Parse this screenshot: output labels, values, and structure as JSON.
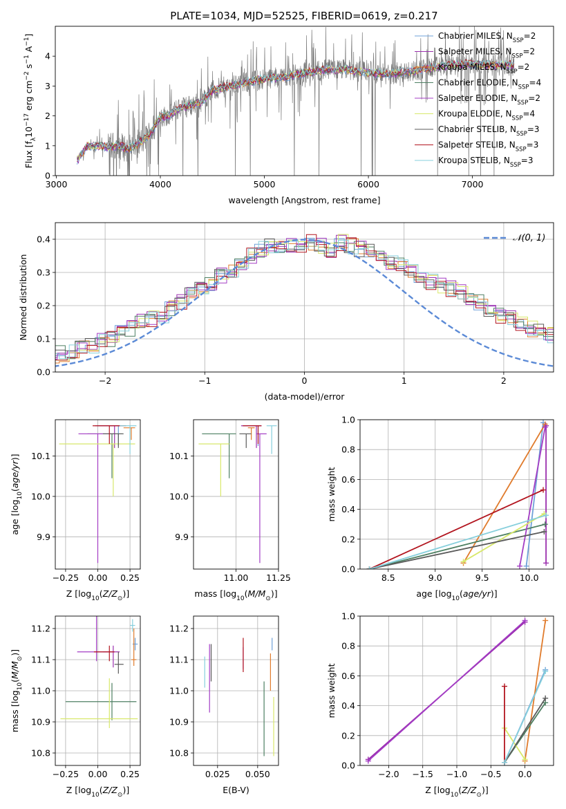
{
  "figure": {
    "title": "PLATE=1034, MJD=52525, FIBERID=0619, z=0.217"
  },
  "colors": {
    "models": [
      "#6ea0d8",
      "#9b2fae",
      "#e07b2c",
      "#4d7f62",
      "#a33cc4",
      "#d8e86a",
      "#5a5a5a",
      "#b2141e",
      "#86cfdc"
    ],
    "data_spectrum": "#7a7a7a",
    "normal_curve": "#5b8ad6"
  },
  "chart_data": [
    {
      "id": "spectrum",
      "type": "line",
      "xlabel": "wavelength [Angstrom, rest frame]",
      "ylabel": "Flux [f_λ 10^-17 erg cm^-2 s^-1 A^-1]",
      "xlim": [
        2990,
        7780
      ],
      "ylim": [
        0,
        5
      ],
      "xticks": [
        "3000",
        "4000",
        "5000",
        "6000",
        "7000"
      ],
      "yticks": [
        "0",
        "1",
        "2",
        "3",
        "4"
      ],
      "grid": false,
      "legend_position": "top-right",
      "legend": [
        {
          "name": "Chabrier MILES, N_SSP=2",
          "base": "Chabrier MILES, N",
          "sub": "SSP",
          "tail": "=2"
        },
        {
          "name": "Salpeter MILES, N_SSP=2",
          "base": "Salpeter MILES, N",
          "sub": "SSP",
          "tail": "=2"
        },
        {
          "name": "Kroupa MILES, N_SSP=2",
          "base": "Kroupa MILES, N",
          "sub": "SSP",
          "tail": "=2"
        },
        {
          "name": "Chabrier ELODIE, N_SSP=4",
          "base": "Chabrier ELODIE, N",
          "sub": "SSP",
          "tail": "=4"
        },
        {
          "name": "Salpeter ELODIE, N_SSP=2",
          "base": "Salpeter ELODIE, N",
          "sub": "SSP",
          "tail": "=2"
        },
        {
          "name": "Kroupa ELODIE, N_SSP=4",
          "base": "Kroupa ELODIE, N",
          "sub": "SSP",
          "tail": "=4"
        },
        {
          "name": "Chabrier STELIB, N_SSP=3",
          "base": "Chabrier STELIB, N",
          "sub": "SSP",
          "tail": "=3"
        },
        {
          "name": "Salpeter STELIB, N_SSP=3",
          "base": "Salpeter STELIB, N",
          "sub": "SSP",
          "tail": "=3"
        },
        {
          "name": "Kroupa STELIB, N_SSP=3",
          "base": "Kroupa STELIB, N",
          "sub": "SSP",
          "tail": "=3"
        }
      ],
      "model_continuum": {
        "x": [
          3200,
          3300,
          3400,
          3500,
          3600,
          3700,
          3800,
          3900,
          4000,
          4100,
          4200,
          4300,
          4400,
          4500,
          4600,
          4800,
          5000,
          5200,
          5400,
          5600,
          5800,
          6000,
          6200,
          6400,
          6600,
          6800,
          7000,
          7200,
          7400
        ],
        "y": [
          0.5,
          1.0,
          1.0,
          0.95,
          1.0,
          0.9,
          1.1,
          1.4,
          1.95,
          2.05,
          2.3,
          2.35,
          2.5,
          2.85,
          2.95,
          3.1,
          3.25,
          3.3,
          3.45,
          3.55,
          3.55,
          3.45,
          3.4,
          3.5,
          3.6,
          3.7,
          3.75,
          3.7,
          3.7
        ]
      }
    },
    {
      "id": "residual-histogram",
      "type": "histogram",
      "xlabel": "(data-model)/error",
      "ylabel": "Normed distribution",
      "xlim": [
        -2.5,
        2.5
      ],
      "ylim": [
        0,
        0.45
      ],
      "xticks": [
        "−2",
        "−1",
        "0",
        "1",
        "2"
      ],
      "yticks": [
        "0.0",
        "0.1",
        "0.2",
        "0.3",
        "0.4"
      ],
      "grid": true,
      "legend_position": "top-right",
      "legend": [
        {
          "name": "𝒩(0, 1)"
        }
      ],
      "bin_width": 0.1,
      "base_profile": [
        0.025,
        0.03,
        0.035,
        0.04,
        0.05,
        0.055,
        0.065,
        0.075,
        0.08,
        0.1,
        0.1,
        0.12,
        0.13,
        0.15,
        0.16,
        0.17,
        0.19,
        0.21,
        0.24,
        0.26,
        0.27,
        0.29,
        0.3,
        0.33,
        0.35,
        0.37,
        0.38,
        0.38,
        0.38,
        0.37,
        0.39,
        0.38,
        0.37,
        0.39,
        0.38,
        0.37,
        0.36,
        0.34,
        0.33,
        0.32,
        0.3,
        0.28,
        0.27,
        0.26,
        0.25,
        0.24,
        0.22,
        0.21,
        0.19,
        0.17,
        0.16,
        0.15,
        0.13,
        0.12,
        0.11,
        0.1,
        0.09,
        0.08,
        0.07,
        0.06,
        0.05,
        0.04
      ]
    },
    {
      "id": "age-vs-Z",
      "type": "errorbar",
      "xlabel": "Z [log10(Z/Z⊙)]",
      "ylabel": "age [log10(age/yr)]",
      "xlim": [
        -0.33,
        0.33
      ],
      "ylim": [
        9.82,
        10.19
      ],
      "xticks": [
        "−0.25",
        "0.00",
        "0.25"
      ],
      "yticks": [
        "9.9",
        "10.0",
        "10.1"
      ],
      "points": [
        {
          "x": 0.16,
          "y": 10.175,
          "xerr": [
            0.16,
            0.02
          ],
          "yerr": [
            0.05,
            0.0
          ]
        },
        {
          "x": 0.13,
          "y": 10.175,
          "xerr": [
            0.15,
            0.05
          ],
          "yerr": [
            0.055,
            0.0
          ]
        },
        {
          "x": 0.26,
          "y": 10.17,
          "xerr": [
            0.06,
            0.03
          ],
          "yerr": [
            0.03,
            0.0
          ]
        },
        {
          "x": 0.11,
          "y": 10.155,
          "xerr": [
            0.19,
            0.08
          ],
          "yerr": [
            0.11,
            0.0
          ]
        },
        {
          "x": 0.0,
          "y": 10.155,
          "xerr": [
            0.15,
            0.13
          ],
          "yerr": [
            0.32,
            0.0
          ]
        },
        {
          "x": 0.12,
          "y": 10.13,
          "xerr": [
            0.42,
            0.17
          ],
          "yerr": [
            0.13,
            0.0
          ]
        },
        {
          "x": 0.16,
          "y": 10.155,
          "xerr": [
            0.12,
            0.04
          ],
          "yerr": [
            0.035,
            0.0
          ]
        },
        {
          "x": 0.09,
          "y": 10.175,
          "xerr": [
            0.13,
            0.13
          ],
          "yerr": [
            0.045,
            0.0
          ]
        },
        {
          "x": 0.25,
          "y": 10.175,
          "xerr": [
            0.08,
            0.05
          ],
          "yerr": [
            0.07,
            0.0
          ]
        }
      ]
    },
    {
      "id": "age-vs-mass",
      "type": "errorbar",
      "xlabel": "mass [log10(M/M⊙)]",
      "ylabel": "",
      "xlim": [
        10.75,
        11.25
      ],
      "ylim": [
        9.82,
        10.19
      ],
      "xticks": [
        "11.00",
        "11.25"
      ],
      "yticks": [
        "9.9",
        "10.0",
        "10.1"
      ],
      "points": [
        {
          "x": 11.13,
          "y": 10.175,
          "xerr": [
            0.04,
            0.02
          ],
          "yerr": [
            0.05,
            0.0
          ]
        },
        {
          "x": 11.12,
          "y": 10.175,
          "xerr": [
            0.09,
            0.03
          ],
          "yerr": [
            0.055,
            0.0
          ]
        },
        {
          "x": 11.09,
          "y": 10.17,
          "xerr": [
            0.02,
            0.02
          ],
          "yerr": [
            0.03,
            0.0
          ]
        },
        {
          "x": 10.96,
          "y": 10.155,
          "xerr": [
            0.16,
            0.04
          ],
          "yerr": [
            0.11,
            0.0
          ]
        },
        {
          "x": 11.14,
          "y": 10.155,
          "xerr": [
            0.02,
            0.04
          ],
          "yerr": [
            0.32,
            0.0
          ]
        },
        {
          "x": 10.91,
          "y": 10.13,
          "xerr": [
            0.13,
            0.05
          ],
          "yerr": [
            0.13,
            0.0
          ]
        },
        {
          "x": 11.06,
          "y": 10.155,
          "xerr": [
            0.04,
            0.03
          ],
          "yerr": [
            0.035,
            0.0
          ]
        },
        {
          "x": 11.13,
          "y": 10.175,
          "xerr": [
            0.09,
            0.02
          ],
          "yerr": [
            0.045,
            0.0
          ]
        },
        {
          "x": 11.21,
          "y": 10.175,
          "xerr": [
            0.03,
            0.03
          ],
          "yerr": [
            0.07,
            0.0
          ]
        }
      ]
    },
    {
      "id": "massweight-vs-age",
      "type": "line",
      "xlabel": "age [log10(age/yr)]",
      "ylabel": "mass weight",
      "xlim": [
        8.2,
        10.26
      ],
      "ylim": [
        0,
        1
      ],
      "xticks": [
        "8.5",
        "9.0",
        "9.5",
        "10.0"
      ],
      "yticks": [
        "0.0",
        "0.2",
        "0.4",
        "0.6",
        "0.8",
        "1.0"
      ],
      "series": [
        {
          "x": [
            9.97,
            10.15
          ],
          "y": [
            0.02,
            0.98
          ]
        },
        {
          "x": [
            10.18,
            10.18
          ],
          "y": [
            0.04,
            0.96
          ]
        },
        {
          "x": [
            9.3,
            10.17
          ],
          "y": [
            0.04,
            0.97
          ]
        },
        {
          "x": [
            8.3,
            10.17
          ],
          "y": [
            0.0,
            0.3
          ]
        },
        {
          "x": [
            9.9,
            10.17
          ],
          "y": [
            0.02,
            0.95
          ]
        },
        {
          "x": [
            9.3,
            10.16
          ],
          "y": [
            0.05,
            0.37
          ]
        },
        {
          "x": [
            8.3,
            10.16
          ],
          "y": [
            0.0,
            0.25
          ]
        },
        {
          "x": [
            8.3,
            10.15
          ],
          "y": [
            0.0,
            0.53
          ]
        },
        {
          "x": [
            8.3,
            10.18
          ],
          "y": [
            0.0,
            0.36
          ]
        }
      ]
    },
    {
      "id": "mass-vs-Z",
      "type": "errorbar",
      "xlabel": "Z [log10(Z/Z⊙)]",
      "ylabel": "mass [log10(M/M⊙)]",
      "xlim": [
        -0.33,
        0.33
      ],
      "ylim": [
        10.76,
        11.24
      ],
      "xticks": [
        "−0.25",
        "0.00",
        "0.25"
      ],
      "yticks": [
        "10.8",
        "10.9",
        "11.0",
        "11.1",
        "11.2"
      ],
      "points": [
        {
          "x": 0.29,
          "y": 11.15,
          "xerr": [
            0.02,
            0.02
          ],
          "yerr": [
            0.02,
            0.02
          ]
        },
        {
          "x": 0.12,
          "y": 11.125,
          "xerr": [
            0.08,
            0.05
          ],
          "yerr": [
            0.05,
            0.02
          ]
        },
        {
          "x": 0.28,
          "y": 11.1,
          "xerr": [
            0.02,
            0.02
          ],
          "yerr": [
            0.02,
            0.1
          ]
        },
        {
          "x": 0.11,
          "y": 10.965,
          "xerr": [
            0.36,
            0.19
          ],
          "yerr": [
            0.06,
            0.06
          ]
        },
        {
          "x": -0.01,
          "y": 11.125,
          "xerr": [
            0.15,
            0.12
          ],
          "yerr": [
            0.03,
            0.19
          ]
        },
        {
          "x": 0.09,
          "y": 10.91,
          "xerr": [
            0.38,
            0.22
          ],
          "yerr": [
            0.03,
            0.13
          ]
        },
        {
          "x": 0.16,
          "y": 11.085,
          "xerr": [
            0.03,
            0.04
          ],
          "yerr": [
            0.03,
            0.04
          ]
        },
        {
          "x": 0.09,
          "y": 11.125,
          "xerr": [
            0.12,
            0.04
          ],
          "yerr": [
            0.03,
            0.02
          ]
        },
        {
          "x": 0.27,
          "y": 11.21,
          "xerr": [
            0.02,
            0.02
          ],
          "yerr": [
            0.02,
            0.02
          ]
        }
      ]
    },
    {
      "id": "mass-vs-EBV",
      "type": "errorbar",
      "xlabel": "E(B-V)",
      "ylabel": "",
      "xlim": [
        0.01,
        0.063
      ],
      "ylim": [
        10.76,
        11.24
      ],
      "xticks": [
        "0.025",
        "0.050"
      ],
      "yticks": [
        "10.8",
        "10.9",
        "11.0",
        "11.1",
        "11.2"
      ],
      "points": [
        {
          "x": 0.059,
          "y": 11.15,
          "xerr": [
            0,
            0
          ],
          "yerr": [
            0.02,
            0.02
          ]
        },
        {
          "x": 0.041,
          "y": 11.12,
          "xerr": [
            0,
            0
          ],
          "yerr": [
            0.05,
            0.02
          ]
        },
        {
          "x": 0.058,
          "y": 11.07,
          "xerr": [
            0,
            0
          ],
          "yerr": [
            0.07,
            0.05
          ]
        },
        {
          "x": 0.054,
          "y": 10.91,
          "xerr": [
            0,
            0
          ],
          "yerr": [
            0.12,
            0.12
          ]
        },
        {
          "x": 0.02,
          "y": 11.04,
          "xerr": [
            0,
            0
          ],
          "yerr": [
            0.11,
            0.11
          ]
        },
        {
          "x": 0.06,
          "y": 10.89,
          "xerr": [
            0,
            0
          ],
          "yerr": [
            0.1,
            0.09
          ]
        },
        {
          "x": 0.021,
          "y": 11.09,
          "xerr": [
            0,
            0
          ],
          "yerr": [
            0.06,
            0.06
          ]
        },
        {
          "x": 0.041,
          "y": 11.11,
          "xerr": [
            0,
            0
          ],
          "yerr": [
            0.05,
            0.06
          ]
        },
        {
          "x": 0.017,
          "y": 11.06,
          "xerr": [
            0,
            0
          ],
          "yerr": [
            0.05,
            0.05
          ]
        }
      ]
    },
    {
      "id": "massweight-vs-Z",
      "type": "line",
      "xlabel": "Z [log10(Z/Z⊙)]",
      "ylabel": "mass weight",
      "xlim": [
        -2.42,
        0.42
      ],
      "ylim": [
        0,
        1
      ],
      "xticks": [
        "−2.0",
        "−1.5",
        "−1.0",
        "−0.5",
        "0.0"
      ],
      "yticks": [
        "0.0",
        "0.2",
        "0.4",
        "0.6",
        "0.8",
        "1.0"
      ],
      "series": [
        {
          "x": [
            -0.3,
            0.3
          ],
          "y": [
            0.02,
            0.64
          ]
        },
        {
          "x": [
            -2.3,
            0.0
          ],
          "y": [
            0.04,
            0.96
          ]
        },
        {
          "x": [
            0.0,
            0.3
          ],
          "y": [
            0.03,
            0.97
          ]
        },
        {
          "x": [
            -0.3,
            0.3
          ],
          "y": [
            0.02,
            0.42
          ]
        },
        {
          "x": [
            -2.3,
            0.0
          ],
          "y": [
            0.03,
            0.97
          ]
        },
        {
          "x": [
            -0.3,
            0.0
          ],
          "y": [
            0.25,
            0.04
          ]
        },
        {
          "x": [
            -0.3,
            0.3
          ],
          "y": [
            0.02,
            0.45
          ]
        },
        {
          "x": [
            -0.3,
            -0.3
          ],
          "y": [
            0.02,
            0.53
          ]
        },
        {
          "x": [
            -0.3,
            0.3
          ],
          "y": [
            0.02,
            0.63
          ]
        }
      ]
    }
  ]
}
